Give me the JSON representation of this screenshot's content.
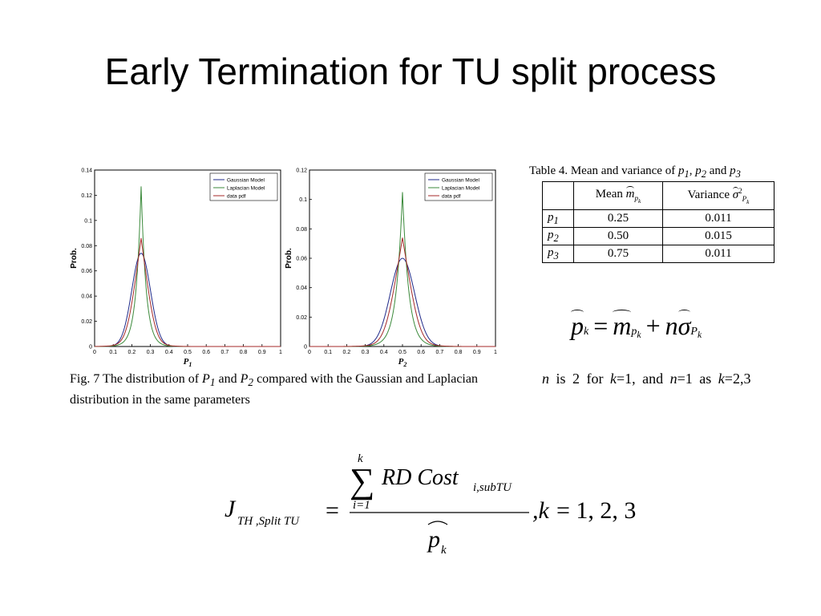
{
  "slide": {
    "title": "Early Termination for TU split process"
  },
  "figure": {
    "caption_parts": [
      "Fig. 7 The distribution of ",
      "P",
      "1",
      " and ",
      "P",
      "2",
      " compared with the Gaussian and Laplacian distribution in the same parameters"
    ]
  },
  "colors": {
    "gaussian": "#1f2a8a",
    "laplacian": "#3b8a3b",
    "data": "#a52a2a"
  },
  "chart_data": [
    {
      "type": "line",
      "xlabel": "P1",
      "ylabel": "Prob.",
      "xlim": [
        0,
        1
      ],
      "ylim": [
        0,
        0.14
      ],
      "x_ticks": [
        "0",
        "0.1",
        "0.2",
        "0.3",
        "0.4",
        "0.5",
        "0.6",
        "0.7",
        "0.8",
        "0.9",
        "1"
      ],
      "y_ticks": [
        "0",
        "0.02",
        "0.04",
        "0.06",
        "0.08",
        "0.1",
        "0.12",
        "0.14"
      ],
      "legend": [
        "Gaussian Model",
        "Laplacian Model",
        "data pdf"
      ],
      "legend_position": "top-right",
      "series": [
        {
          "name": "Gaussian Model",
          "kind": "gaussian",
          "center": 0.25,
          "peak": 0.074,
          "width": 0.05
        },
        {
          "name": "Laplacian Model",
          "kind": "laplace",
          "center": 0.25,
          "peak": 0.127,
          "width": 0.04
        },
        {
          "name": "data pdf",
          "kind": "mixed",
          "center": 0.25,
          "peak": 0.086,
          "width": 0.045
        }
      ]
    },
    {
      "type": "line",
      "xlabel": "P2",
      "ylabel": "Prob.",
      "xlim": [
        0,
        1
      ],
      "ylim": [
        0,
        0.12
      ],
      "x_ticks": [
        "0",
        "0.1",
        "0.2",
        "0.3",
        "0.4",
        "0.5",
        "0.6",
        "0.7",
        "0.8",
        "0.9",
        "1"
      ],
      "y_ticks": [
        "0",
        "0.02",
        "0.04",
        "0.06",
        "0.08",
        "0.1",
        "0.12"
      ],
      "legend": [
        "Gaussian Model",
        "Laplacian Model",
        "data pdf"
      ],
      "legend_position": "top-right",
      "series": [
        {
          "name": "Gaussian Model",
          "kind": "gaussian",
          "center": 0.5,
          "peak": 0.06,
          "width": 0.065
        },
        {
          "name": "Laplacian Model",
          "kind": "laplace",
          "center": 0.5,
          "peak": 0.105,
          "width": 0.05
        },
        {
          "name": "data pdf",
          "kind": "mixed",
          "center": 0.5,
          "peak": 0.074,
          "width": 0.055
        }
      ]
    }
  ],
  "table": {
    "caption": "Table 4. Mean and variance of p1, p2 and p3",
    "mean_header": "Mean",
    "var_header": "Variance",
    "rows": [
      {
        "label": "p",
        "sub": "1",
        "mean": "0.25",
        "var": "0.011"
      },
      {
        "label": "p",
        "sub": "2",
        "mean": "0.50",
        "var": "0.015"
      },
      {
        "label": "p",
        "sub": "3",
        "mean": "0.75",
        "var": "0.011"
      }
    ]
  },
  "equation": {
    "pk_formula": "p_k = m_pk + n σ_Pk",
    "n_note": "n is 2 for k=1, and n=1 as k=2,3",
    "main_formula": "J_TH,Split TU = Σ_{i=1}^{k} RD Cost_{i,subTU} / p_k , k=1,2,3"
  }
}
